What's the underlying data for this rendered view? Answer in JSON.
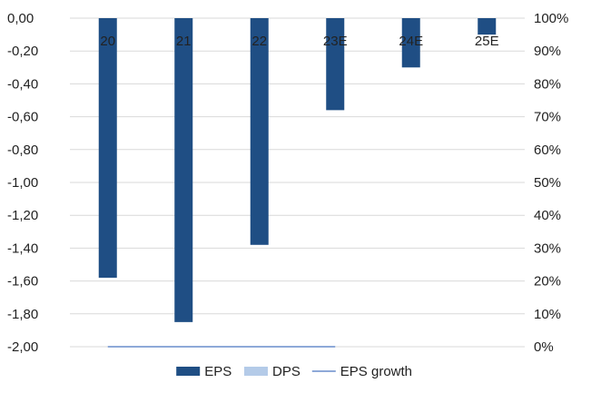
{
  "chart_data": {
    "type": "bar",
    "categories": [
      "20",
      "21",
      "22",
      "23E",
      "24E",
      "25E"
    ],
    "series": [
      {
        "name": "EPS",
        "kind": "bar",
        "axis": "left",
        "color": "#1f4e84",
        "values": [
          -1.58,
          -1.85,
          -1.38,
          -0.56,
          -0.3,
          -0.1
        ]
      },
      {
        "name": "DPS",
        "kind": "bar",
        "axis": "left",
        "color": "#b4cbe8",
        "values": [
          0,
          0,
          0,
          0,
          0,
          0
        ]
      },
      {
        "name": "EPS growth",
        "kind": "line",
        "axis": "right",
        "color": "#8ea9d8",
        "values": [
          0,
          0,
          0,
          0,
          null,
          null
        ]
      }
    ],
    "y_left": {
      "range": [
        -2.0,
        0.0
      ],
      "ticks": [
        0.0,
        -0.2,
        -0.4,
        -0.6,
        -0.8,
        -1.0,
        -1.2,
        -1.4,
        -1.6,
        -1.8,
        -2.0
      ],
      "tick_labels": [
        "0,00",
        "-0,20",
        "-0,40",
        "-0,60",
        "-0,80",
        "-1,00",
        "-1,20",
        "-1,40",
        "-1,60",
        "-1,80",
        "-2,00"
      ]
    },
    "y_right": {
      "range": [
        0,
        100
      ],
      "ticks": [
        100,
        90,
        80,
        70,
        60,
        50,
        40,
        30,
        20,
        10,
        0
      ],
      "tick_labels": [
        "100%",
        "90%",
        "80%",
        "70%",
        "60%",
        "50%",
        "40%",
        "30%",
        "20%",
        "10%",
        "0%"
      ]
    },
    "grid": true,
    "legend_position": "bottom",
    "legend": [
      {
        "label": "EPS",
        "symbol": "bar",
        "color": "#1f4e84"
      },
      {
        "label": "DPS",
        "symbol": "bar",
        "color": "#b4cbe8"
      },
      {
        "label": "EPS growth",
        "symbol": "line",
        "color": "#8ea9d8"
      }
    ],
    "gridline_color": "#d9d9d9",
    "text_color": "#222222"
  }
}
